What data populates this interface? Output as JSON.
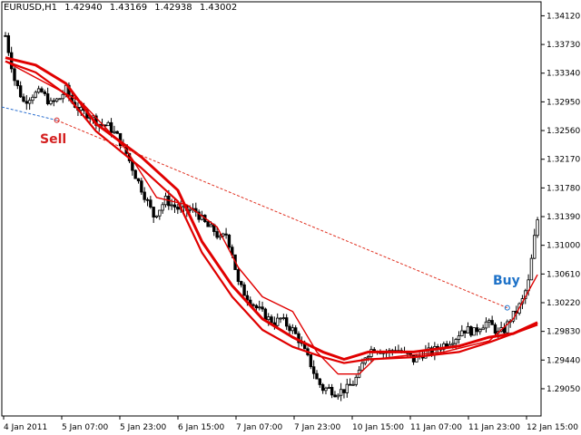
{
  "symbol_header": {
    "symbol": "EURUSD,H1",
    "open": "1.42940",
    "high": "1.43169",
    "low": "1.42938",
    "close": "1.43002"
  },
  "signals": {
    "sell_label": "Sell",
    "buy_label": "Buy"
  },
  "colors": {
    "background": "#ffffff",
    "candles": "#000000",
    "ma": "#e00000",
    "sell": "#d42020",
    "buy": "#1e72c8",
    "sell_trend_line": "#2a6fd0",
    "connector_line": "#e03020"
  },
  "chart_data": {
    "type": "candlestick",
    "title": "",
    "price_axis": {
      "ticks": [
        "1.34120",
        "1.33730",
        "1.33340",
        "1.32950",
        "1.32560",
        "1.32170",
        "1.31780",
        "1.31390",
        "1.31000",
        "1.30610",
        "1.30220",
        "1.29830",
        "1.29440",
        "1.29050"
      ],
      "range": [
        1.2868,
        1.3431
      ]
    },
    "time_axis": {
      "ticks": [
        "4 Jan 2011",
        "5 Jan 07:00",
        "5 Jan 23:00",
        "6 Jan 15:00",
        "7 Jan 07:00",
        "7 Jan 23:00",
        "10 Jan 15:00",
        "11 Jan 07:00",
        "11 Jan 23:00",
        "12 Jan 15:00"
      ]
    },
    "close_path": [
      [
        0,
        1.3385
      ],
      [
        3,
        1.3325
      ],
      [
        6,
        1.3295
      ],
      [
        9,
        1.3305
      ],
      [
        12,
        1.3308
      ],
      [
        15,
        1.3292
      ],
      [
        18,
        1.33
      ],
      [
        20,
        1.3312
      ],
      [
        22,
        1.3295
      ],
      [
        25,
        1.3282
      ],
      [
        28,
        1.3277
      ],
      [
        31,
        1.3265
      ],
      [
        34,
        1.3262
      ],
      [
        37,
        1.3248
      ],
      [
        40,
        1.3225
      ],
      [
        43,
        1.3195
      ],
      [
        46,
        1.3168
      ],
      [
        49,
        1.314
      ],
      [
        51,
        1.315
      ],
      [
        53,
        1.3162
      ],
      [
        55,
        1.3155
      ],
      [
        57,
        1.315
      ],
      [
        59,
        1.3148
      ],
      [
        61,
        1.3148
      ],
      [
        63,
        1.3146
      ],
      [
        65,
        1.3135
      ],
      [
        67,
        1.3125
      ],
      [
        69,
        1.312
      ],
      [
        71,
        1.3108
      ],
      [
        73,
        1.3115
      ],
      [
        75,
        1.309
      ],
      [
        77,
        1.3048
      ],
      [
        79,
        1.3035
      ],
      [
        81,
        1.3025
      ],
      [
        83,
        1.3015
      ],
      [
        85,
        1.3008
      ],
      [
        87,
        1.3
      ],
      [
        89,
        1.2995
      ],
      [
        91,
        1.3
      ],
      [
        93,
        1.2992
      ],
      [
        95,
        1.2985
      ],
      [
        97,
        1.2972
      ],
      [
        99,
        1.2955
      ],
      [
        101,
        1.2938
      ],
      [
        103,
        1.2917
      ],
      [
        105,
        1.2905
      ],
      [
        107,
        1.2905
      ],
      [
        109,
        1.29
      ],
      [
        111,
        1.2902
      ],
      [
        113,
        1.2905
      ],
      [
        115,
        1.2913
      ],
      [
        117,
        1.2925
      ],
      [
        119,
        1.295
      ],
      [
        121,
        1.2958
      ],
      [
        123,
        1.296
      ],
      [
        125,
        1.2955
      ],
      [
        127,
        1.2955
      ],
      [
        129,
        1.296
      ],
      [
        131,
        1.2955
      ],
      [
        133,
        1.295
      ],
      [
        135,
        1.2944
      ],
      [
        137,
        1.295
      ],
      [
        139,
        1.2955
      ],
      [
        141,
        1.2955
      ],
      [
        143,
        1.296
      ],
      [
        145,
        1.2965
      ],
      [
        147,
        1.297
      ],
      [
        149,
        1.2975
      ],
      [
        151,
        1.2985
      ],
      [
        153,
        1.2985
      ],
      [
        155,
        1.2982
      ],
      [
        157,
        1.299
      ],
      [
        159,
        1.2995
      ],
      [
        161,
        1.299
      ],
      [
        163,
        1.298
      ],
      [
        165,
        1.2985
      ],
      [
        167,
        1.3
      ],
      [
        169,
        1.301
      ],
      [
        171,
        1.3025
      ],
      [
        173,
        1.305
      ],
      [
        175,
        1.311
      ],
      [
        176,
        1.3135
      ]
    ],
    "series": [
      {
        "name": "",
        "color": "#e00000",
        "width": 1.4,
        "points": [
          [
            0,
            1.335
          ],
          [
            25,
            1.3295
          ],
          [
            40,
            1.323
          ],
          [
            50,
            1.3165
          ],
          [
            60,
            1.3155
          ],
          [
            70,
            1.3125
          ],
          [
            77,
            1.307
          ],
          [
            85,
            1.303
          ],
          [
            95,
            1.301
          ],
          [
            103,
            1.2955
          ],
          [
            110,
            1.2925
          ],
          [
            117,
            1.2925
          ],
          [
            122,
            1.2945
          ],
          [
            132,
            1.295
          ],
          [
            145,
            1.2955
          ],
          [
            160,
            1.297
          ],
          [
            168,
            1.3
          ],
          [
            176,
            1.306
          ]
        ]
      },
      {
        "name": "",
        "color": "#e00000",
        "width": 3,
        "points": [
          [
            0,
            1.3355
          ],
          [
            10,
            1.3345
          ],
          [
            20,
            1.332
          ],
          [
            30,
            1.3265
          ],
          [
            45,
            1.322
          ],
          [
            57,
            1.3175
          ],
          [
            65,
            1.3105
          ],
          [
            75,
            1.3045
          ],
          [
            85,
            1.3
          ],
          [
            95,
            1.2975
          ],
          [
            105,
            1.2955
          ],
          [
            112,
            1.2945
          ],
          [
            120,
            1.2955
          ],
          [
            135,
            1.2955
          ],
          [
            150,
            1.2963
          ],
          [
            160,
            1.2975
          ],
          [
            168,
            1.298
          ],
          [
            176,
            1.2995
          ]
        ]
      },
      {
        "name": "",
        "color": "#e00000",
        "width": 2.2,
        "points": [
          [
            0,
            1.335
          ],
          [
            10,
            1.3335
          ],
          [
            20,
            1.3305
          ],
          [
            30,
            1.3255
          ],
          [
            45,
            1.3205
          ],
          [
            57,
            1.316
          ],
          [
            65,
            1.309
          ],
          [
            75,
            1.303
          ],
          [
            85,
            1.2985
          ],
          [
            95,
            1.2962
          ],
          [
            105,
            1.2948
          ],
          [
            112,
            1.294
          ],
          [
            120,
            1.2945
          ],
          [
            135,
            1.2948
          ],
          [
            150,
            1.2955
          ],
          [
            160,
            1.2968
          ],
          [
            168,
            1.298
          ],
          [
            176,
            1.2992
          ]
        ]
      }
    ],
    "trend_line": {
      "from": [
        0,
        1.3288
      ],
      "to": [
        17,
        1.327
      ]
    },
    "connector_line": {
      "from": [
        17,
        1.327
      ],
      "to": [
        166,
        1.3015
      ]
    },
    "sell_marker": {
      "at": [
        17,
        1.327
      ]
    },
    "buy_marker": {
      "at": [
        166,
        1.3015
      ]
    }
  }
}
